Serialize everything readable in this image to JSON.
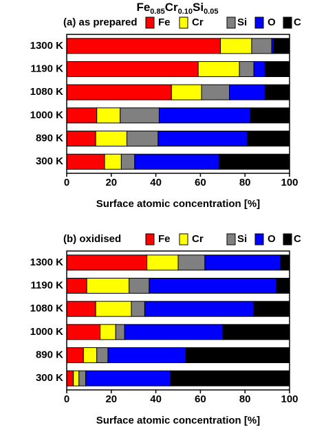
{
  "chart_data": [
    {
      "type": "bar",
      "orientation": "horizontal",
      "stacked": true,
      "title": [
        "Fe",
        "0.85",
        "Cr",
        "0.10",
        "Si",
        "0.05"
      ],
      "panel_label": "(a) as prepared",
      "categories": [
        "1300 K",
        "1190 K",
        "1080 K",
        "1000 K",
        "890 K",
        "300 K"
      ],
      "series": [
        {
          "name": "Fe",
          "color": "#ff0000",
          "values": [
            69,
            59,
            47,
            13.5,
            13,
            17
          ]
        },
        {
          "name": "Cr",
          "color": "#ffff00",
          "values": [
            14,
            18.5,
            13.5,
            10.5,
            14,
            7.5
          ]
        },
        {
          "name": "Si",
          "color": "#808080",
          "values": [
            9,
            6.5,
            12.5,
            17.5,
            14,
            6
          ]
        },
        {
          "name": "O",
          "color": "#0000ff",
          "values": [
            1,
            5,
            16,
            41,
            40,
            38
          ]
        },
        {
          "name": "C",
          "color": "#000000",
          "values": [
            7,
            11,
            11,
            17.5,
            19,
            31.5
          ]
        }
      ],
      "xlabel": "Surface atomic concentration [%]",
      "xlim": [
        0,
        100
      ],
      "xticks": [
        0,
        20,
        40,
        60,
        80,
        100
      ]
    },
    {
      "type": "bar",
      "orientation": "horizontal",
      "stacked": true,
      "panel_label": "(b) oxidised",
      "categories": [
        "1300 K",
        "1190 K",
        "1080 K",
        "1000 K",
        "890 K",
        "300 K"
      ],
      "series": [
        {
          "name": "Fe",
          "color": "#ff0000",
          "values": [
            36,
            9,
            13,
            15,
            7.5,
            3
          ]
        },
        {
          "name": "Cr",
          "color": "#ffff00",
          "values": [
            14,
            19,
            16,
            7,
            6,
            2.5
          ]
        },
        {
          "name": "Si",
          "color": "#808080",
          "values": [
            12,
            9,
            6,
            4,
            5,
            3
          ]
        },
        {
          "name": "O",
          "color": "#0000ff",
          "values": [
            34,
            57,
            49,
            44,
            35,
            38
          ]
        },
        {
          "name": "C",
          "color": "#000000",
          "values": [
            4,
            6,
            16,
            30,
            46.5,
            53.5
          ]
        }
      ],
      "xlabel": "Surface atomic concentration [%]",
      "xlim": [
        0,
        100
      ],
      "xticks": [
        0,
        20,
        40,
        60,
        80,
        100
      ]
    }
  ]
}
